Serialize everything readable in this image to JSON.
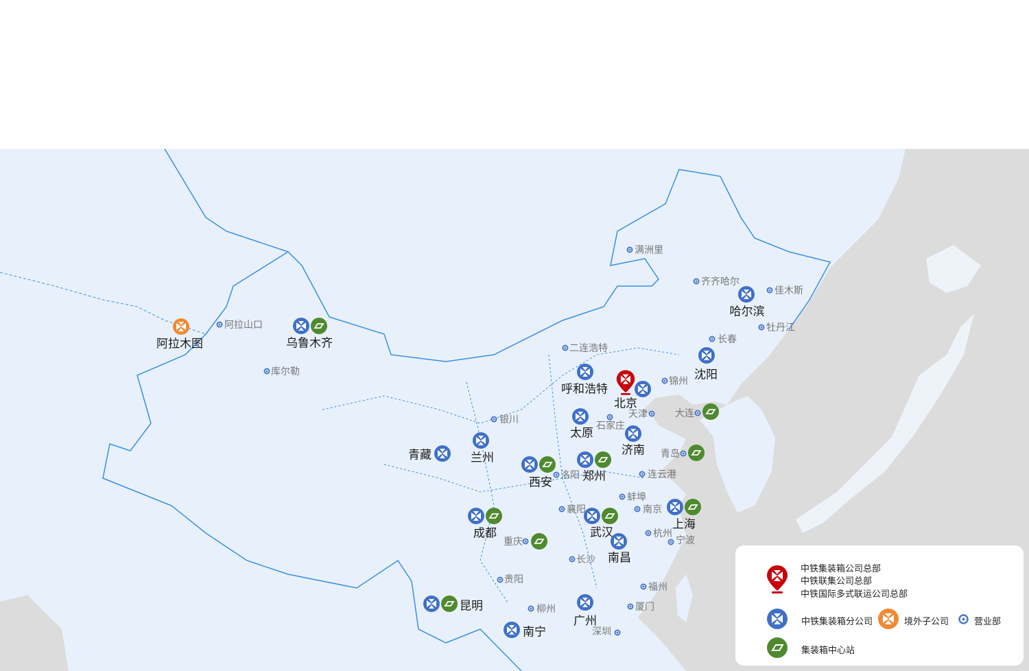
{
  "colors": {
    "branch": "#3f70c8",
    "overseas": "#ef8a32",
    "center": "#4f8a2e",
    "hq": "#c8000a",
    "office": "#4a78c9",
    "land": "#e8f1fb",
    "sea": "#dcdcdc",
    "border": "#3a8ee6"
  },
  "markers": [
    {
      "label": "阿拉木图",
      "icons": [
        "overseas"
      ]
    },
    {
      "label": "阿拉山口",
      "icons": [
        "office"
      ]
    },
    {
      "label": "乌鲁木齐",
      "icons": [
        "branch",
        "center"
      ]
    },
    {
      "label": "库尔勒",
      "icons": [
        "office"
      ]
    },
    {
      "label": "满洲里",
      "icons": [
        "office"
      ]
    },
    {
      "label": "齐齐哈尔",
      "icons": [
        "office"
      ]
    },
    {
      "label": "哈尔滨",
      "icons": [
        "branch"
      ]
    },
    {
      "label": "佳木斯",
      "icons": [
        "office"
      ]
    },
    {
      "label": "牡丹江",
      "icons": [
        "office"
      ]
    },
    {
      "label": "长春",
      "icons": [
        "office"
      ]
    },
    {
      "label": "沈阳",
      "icons": [
        "branch"
      ]
    },
    {
      "label": "二连浩特",
      "icons": [
        "office"
      ]
    },
    {
      "label": "呼和浩特",
      "icons": [
        "branch"
      ]
    },
    {
      "label": "北京",
      "icons": [
        "hq",
        "branch"
      ]
    },
    {
      "label": "锦州",
      "icons": [
        "office"
      ]
    },
    {
      "label": "天津",
      "icons": [
        "office"
      ]
    },
    {
      "label": "大连",
      "icons": [
        "office",
        "center"
      ]
    },
    {
      "label": "太原",
      "icons": [
        "branch"
      ]
    },
    {
      "label": "石家庄",
      "icons": [
        "office"
      ]
    },
    {
      "label": "银川",
      "icons": [
        "office"
      ]
    },
    {
      "label": "济南",
      "icons": [
        "branch"
      ]
    },
    {
      "label": "青岛",
      "icons": [
        "office",
        "center"
      ]
    },
    {
      "label": "青藏",
      "icons": [
        "branch"
      ]
    },
    {
      "label": "兰州",
      "icons": [
        "branch"
      ]
    },
    {
      "label": "西安",
      "icons": [
        "branch",
        "center"
      ]
    },
    {
      "label": "洛阳",
      "icons": [
        "office"
      ]
    },
    {
      "label": "郑州",
      "icons": [
        "branch",
        "center"
      ]
    },
    {
      "label": "连云港",
      "icons": [
        "office"
      ]
    },
    {
      "label": "蚌埠",
      "icons": [
        "office"
      ]
    },
    {
      "label": "襄阳",
      "icons": [
        "office"
      ]
    },
    {
      "label": "南京",
      "icons": [
        "office"
      ]
    },
    {
      "label": "上海",
      "icons": [
        "branch",
        "center"
      ]
    },
    {
      "label": "成都",
      "icons": [
        "branch",
        "center"
      ]
    },
    {
      "label": "武汉",
      "icons": [
        "branch",
        "center"
      ]
    },
    {
      "label": "杭州",
      "icons": [
        "office"
      ]
    },
    {
      "label": "宁波",
      "icons": [
        "office"
      ]
    },
    {
      "label": "重庆",
      "icons": [
        "office",
        "center"
      ]
    },
    {
      "label": "南昌",
      "icons": [
        "branch"
      ]
    },
    {
      "label": "长沙",
      "icons": [
        "office"
      ]
    },
    {
      "label": "贵阳",
      "icons": [
        "office"
      ]
    },
    {
      "label": "福州",
      "icons": [
        "office"
      ]
    },
    {
      "label": "昆明",
      "icons": [
        "branch",
        "center"
      ]
    },
    {
      "label": "柳州",
      "icons": [
        "office"
      ]
    },
    {
      "label": "厦门",
      "icons": [
        "office"
      ]
    },
    {
      "label": "广州",
      "icons": [
        "branch"
      ]
    },
    {
      "label": "南宁",
      "icons": [
        "branch"
      ]
    },
    {
      "label": "深圳",
      "icons": [
        "office"
      ]
    }
  ],
  "legend": {
    "hq_lines": [
      "中铁集装箱公司总部",
      "中铁联集公司总部",
      "中铁国际多式联运公司总部"
    ],
    "branch": "中铁集装箱分公司",
    "overseas": "境外子公司",
    "office": "营业部",
    "center": "集装箱中心站"
  }
}
